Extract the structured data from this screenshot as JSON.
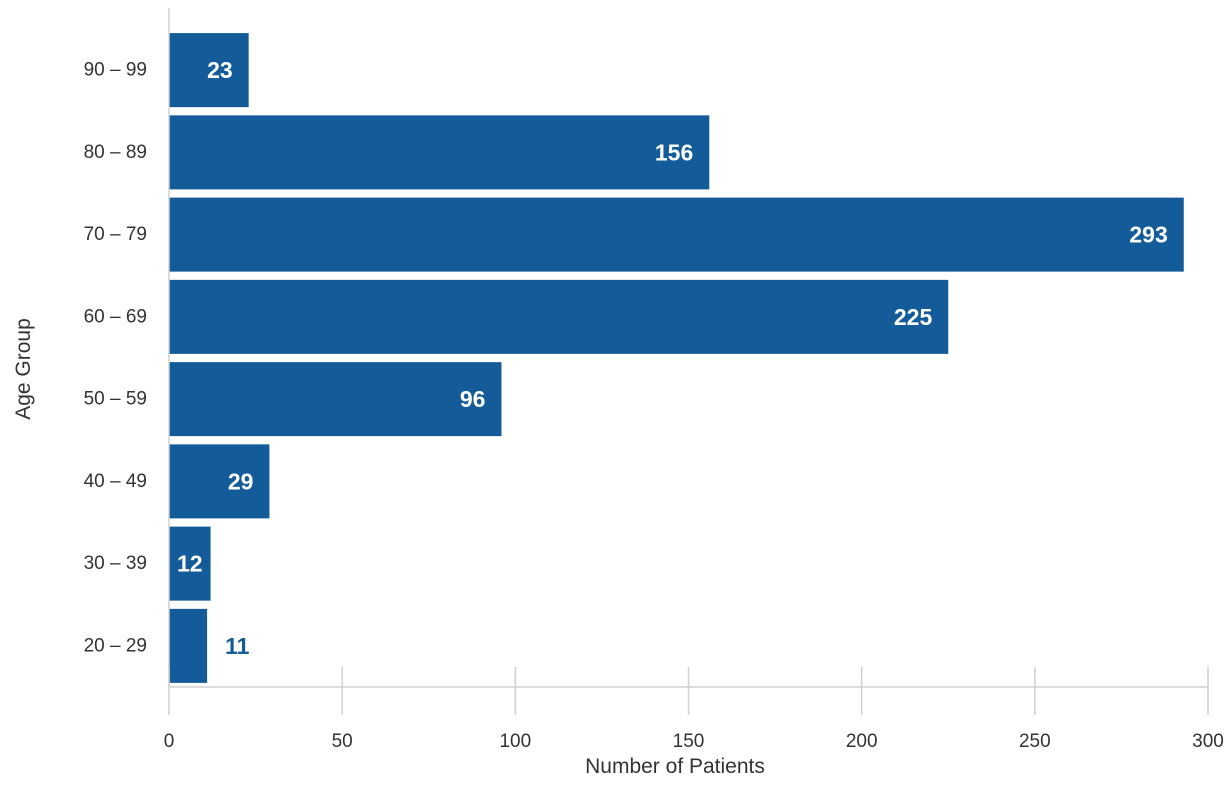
{
  "chart_data": {
    "type": "bar",
    "orientation": "horizontal",
    "categories": [
      "20 – 29",
      "30 – 39",
      "40 – 49",
      "50 – 59",
      "60 – 69",
      "70 – 79",
      "80 – 89",
      "90 – 99"
    ],
    "values": [
      11,
      12,
      29,
      96,
      225,
      293,
      156,
      23
    ],
    "xlabel": "Number of Patients",
    "ylabel": "Age Group",
    "xlim": [
      0,
      300
    ],
    "xticks": [
      "0",
      "50",
      "100",
      "150",
      "200",
      "250",
      "300"
    ],
    "grid": false,
    "legend": "none",
    "colors": {
      "bar": "#135c99",
      "label_inside": "#ffffff",
      "label_outside": "#135c99",
      "axis": "#d0d0d0",
      "text": "#333333"
    }
  }
}
